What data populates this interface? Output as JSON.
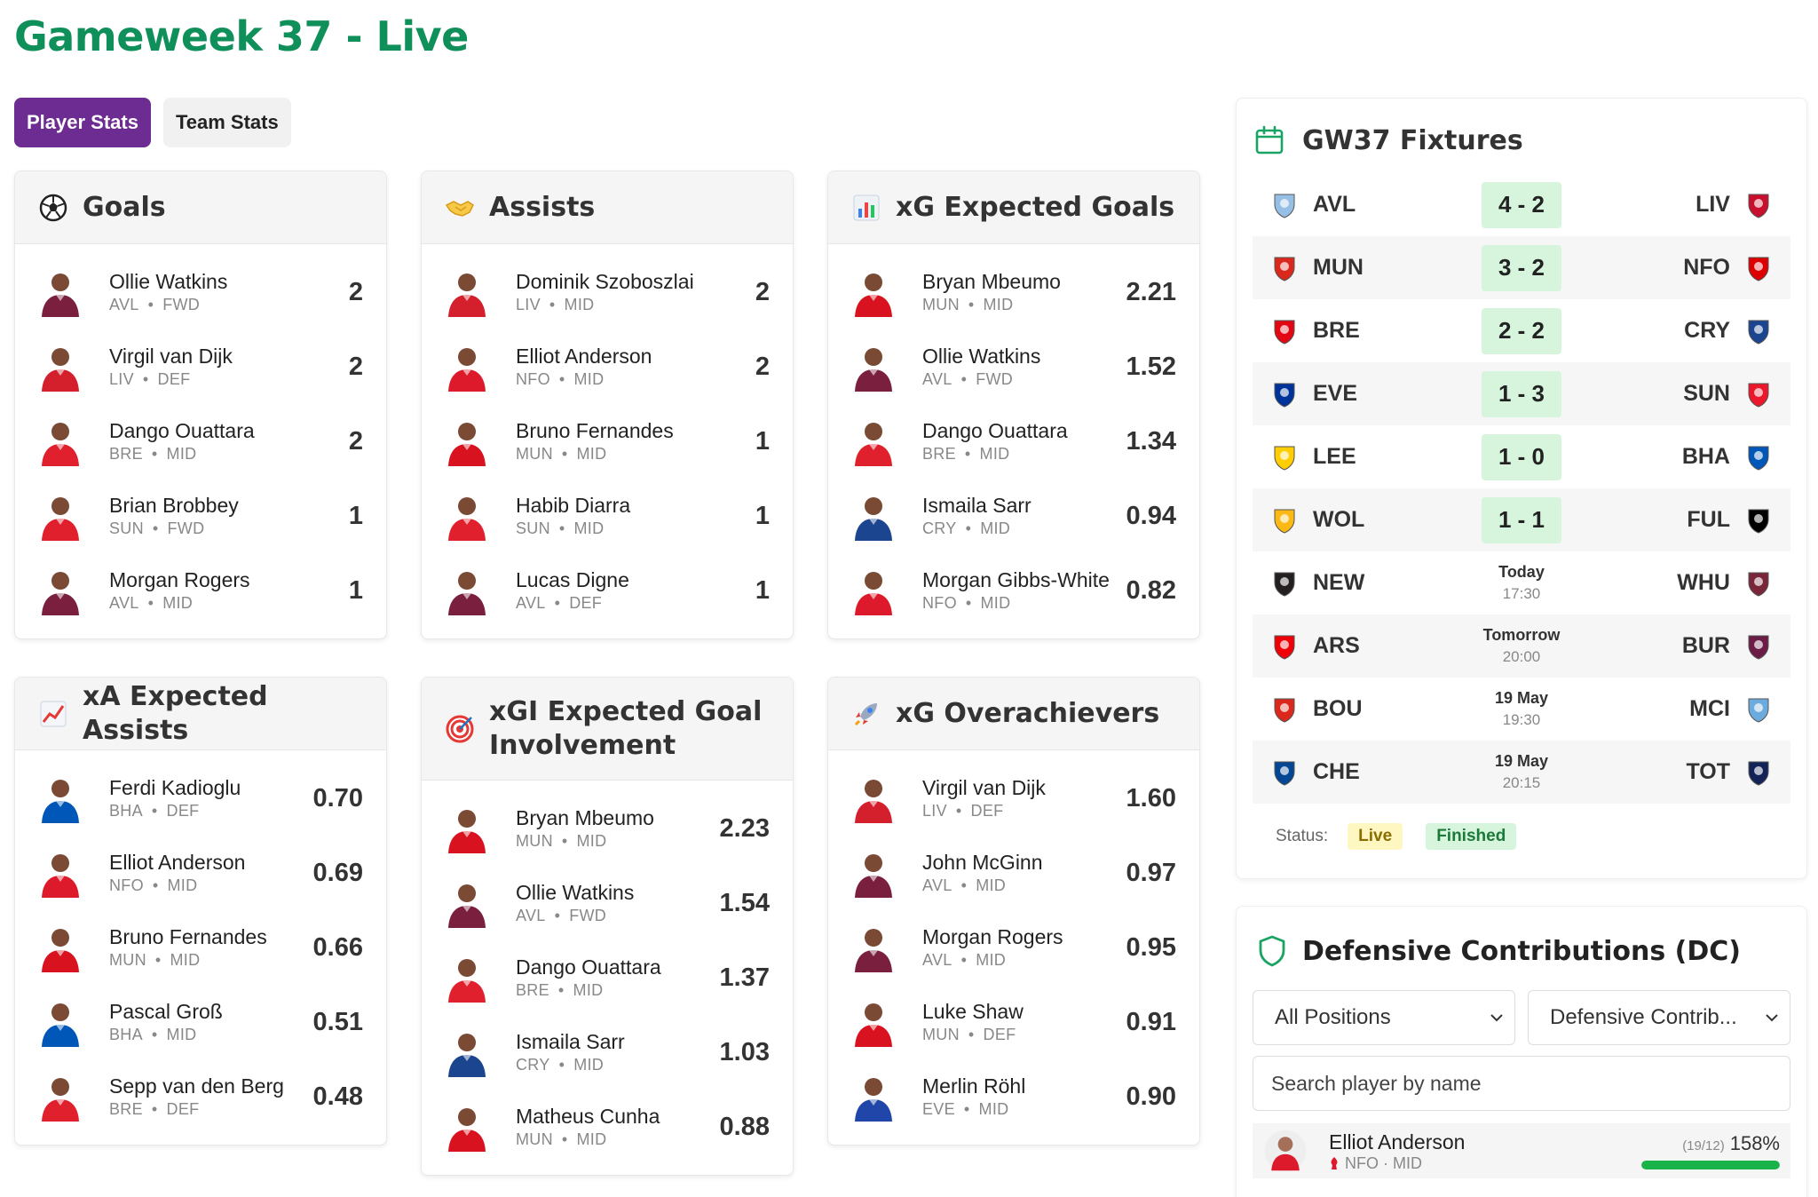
{
  "page": {
    "title": "Gameweek 37 - Live"
  },
  "tabs": [
    {
      "label": "Player Stats",
      "active": true
    },
    {
      "label": "Team Stats",
      "active": false
    }
  ],
  "cards": {
    "goals": {
      "title": "Goals",
      "icon": "soccer-ball-icon",
      "rows": [
        {
          "name": "Ollie Watkins",
          "team": "AVL",
          "pos": "FWD",
          "value": "2",
          "kit": "#7a1f3d"
        },
        {
          "name": "Virgil van Dijk",
          "team": "LIV",
          "pos": "DEF",
          "value": "2",
          "kit": "#d4202c"
        },
        {
          "name": "Dango Ouattara",
          "team": "BRE",
          "pos": "MID",
          "value": "2",
          "kit": "#e0212d"
        },
        {
          "name": "Brian Brobbey",
          "team": "SUN",
          "pos": "FWD",
          "value": "1",
          "kit": "#e0212d"
        },
        {
          "name": "Morgan Rogers",
          "team": "AVL",
          "pos": "MID",
          "value": "1",
          "kit": "#7a1f3d"
        }
      ]
    },
    "assists": {
      "title": "Assists",
      "icon": "handshake-icon",
      "rows": [
        {
          "name": "Dominik Szoboszlai",
          "team": "LIV",
          "pos": "MID",
          "value": "2",
          "kit": "#d4202c"
        },
        {
          "name": "Elliot Anderson",
          "team": "NFO",
          "pos": "MID",
          "value": "2",
          "kit": "#dd1a2b"
        },
        {
          "name": "Bruno Fernandes",
          "team": "MUN",
          "pos": "MID",
          "value": "1",
          "kit": "#d8121f"
        },
        {
          "name": "Habib Diarra",
          "team": "SUN",
          "pos": "MID",
          "value": "1",
          "kit": "#e0212d"
        },
        {
          "name": "Lucas Digne",
          "team": "AVL",
          "pos": "DEF",
          "value": "1",
          "kit": "#7a1f3d"
        }
      ]
    },
    "xg": {
      "title": "xG Expected Goals",
      "icon": "bar-chart-icon",
      "rows": [
        {
          "name": "Bryan Mbeumo",
          "team": "MUN",
          "pos": "MID",
          "value": "2.21",
          "kit": "#d8121f"
        },
        {
          "name": "Ollie Watkins",
          "team": "AVL",
          "pos": "FWD",
          "value": "1.52",
          "kit": "#7a1f3d"
        },
        {
          "name": "Dango Ouattara",
          "team": "BRE",
          "pos": "MID",
          "value": "1.34",
          "kit": "#e0212d"
        },
        {
          "name": "Ismaila Sarr",
          "team": "CRY",
          "pos": "MID",
          "value": "0.94",
          "kit": "#1b458f"
        },
        {
          "name": "Morgan Gibbs-White",
          "team": "NFO",
          "pos": "MID",
          "value": "0.82",
          "kit": "#dd1a2b"
        }
      ]
    },
    "xa": {
      "title": "xA Expected Assists",
      "icon": "trend-chart-icon",
      "rows": [
        {
          "name": "Ferdi Kadioglu",
          "team": "BHA",
          "pos": "DEF",
          "value": "0.70",
          "kit": "#0057b8"
        },
        {
          "name": "Elliot Anderson",
          "team": "NFO",
          "pos": "MID",
          "value": "0.69",
          "kit": "#dd1a2b"
        },
        {
          "name": "Bruno Fernandes",
          "team": "MUN",
          "pos": "MID",
          "value": "0.66",
          "kit": "#d8121f"
        },
        {
          "name": "Pascal Groß",
          "team": "BHA",
          "pos": "MID",
          "value": "0.51",
          "kit": "#0057b8"
        },
        {
          "name": "Sepp van den Berg",
          "team": "BRE",
          "pos": "DEF",
          "value": "0.48",
          "kit": "#e0212d"
        }
      ]
    },
    "xgi": {
      "title": "xGI Expected Goal Involvement",
      "icon": "target-icon",
      "rows": [
        {
          "name": "Bryan Mbeumo",
          "team": "MUN",
          "pos": "MID",
          "value": "2.23",
          "kit": "#d8121f"
        },
        {
          "name": "Ollie Watkins",
          "team": "AVL",
          "pos": "FWD",
          "value": "1.54",
          "kit": "#7a1f3d"
        },
        {
          "name": "Dango Ouattara",
          "team": "BRE",
          "pos": "MID",
          "value": "1.37",
          "kit": "#e0212d"
        },
        {
          "name": "Ismaila Sarr",
          "team": "CRY",
          "pos": "MID",
          "value": "1.03",
          "kit": "#1b458f"
        },
        {
          "name": "Matheus Cunha",
          "team": "MUN",
          "pos": "MID",
          "value": "0.88",
          "kit": "#d8121f"
        }
      ]
    },
    "over": {
      "title": "xG Overachievers",
      "icon": "rocket-icon",
      "rows": [
        {
          "name": "Virgil van Dijk",
          "team": "LIV",
          "pos": "DEF",
          "value": "1.60",
          "kit": "#d4202c"
        },
        {
          "name": "John McGinn",
          "team": "AVL",
          "pos": "MID",
          "value": "0.97",
          "kit": "#7a1f3d"
        },
        {
          "name": "Morgan Rogers",
          "team": "AVL",
          "pos": "MID",
          "value": "0.95",
          "kit": "#7a1f3d"
        },
        {
          "name": "Luke Shaw",
          "team": "MUN",
          "pos": "DEF",
          "value": "0.91",
          "kit": "#d8121f"
        },
        {
          "name": "Merlin Röhl",
          "team": "EVE",
          "pos": "MID",
          "value": "0.90",
          "kit": "#1f46a8"
        }
      ]
    }
  },
  "fixtures": {
    "title": "GW37 Fixtures",
    "rows": [
      {
        "home": "AVL",
        "away": "LIV",
        "score": "4 - 2",
        "home_color": "#95bfe5",
        "away_color": "#c8102e"
      },
      {
        "home": "MUN",
        "away": "NFO",
        "score": "3 - 2",
        "home_color": "#da291c",
        "away_color": "#dd0000"
      },
      {
        "home": "BRE",
        "away": "CRY",
        "score": "2 - 2",
        "home_color": "#e30613",
        "away_color": "#1b458f"
      },
      {
        "home": "EVE",
        "away": "SUN",
        "score": "1 - 3",
        "home_color": "#003399",
        "away_color": "#eb172b"
      },
      {
        "home": "LEE",
        "away": "BHA",
        "score": "1 - 0",
        "home_color": "#ffcd00",
        "away_color": "#0057b8"
      },
      {
        "home": "WOL",
        "away": "FUL",
        "score": "1 - 1",
        "home_color": "#fdb913",
        "away_color": "#000000"
      },
      {
        "home": "NEW",
        "away": "WHU",
        "day": "Today",
        "time": "17:30",
        "home_color": "#241f20",
        "away_color": "#7a263a"
      },
      {
        "home": "ARS",
        "away": "BUR",
        "day": "Tomorrow",
        "time": "20:00",
        "home_color": "#ef0107",
        "away_color": "#6c1d45"
      },
      {
        "home": "BOU",
        "away": "MCI",
        "day": "19 May",
        "time": "19:30",
        "home_color": "#da291c",
        "away_color": "#6cabdd"
      },
      {
        "home": "CHE",
        "away": "TOT",
        "day": "19 May",
        "time": "20:15",
        "home_color": "#034694",
        "away_color": "#132257"
      }
    ],
    "status_label": "Status:",
    "live_label": "Live",
    "finished_label": "Finished"
  },
  "defensive": {
    "title": "Defensive Contributions (DC)",
    "position_select": "All Positions",
    "metric_select": "Defensive Contrib...",
    "search_placeholder": "Search player by name",
    "player": {
      "name": "Elliot Anderson",
      "team": "NFO",
      "pos": "MID",
      "meta": "NFO · MID",
      "ratio": "(19/12)",
      "pct": "158%",
      "progress": 1.0
    }
  },
  "colors": {
    "title_green": "#0f8f5a",
    "tab_purple": "#6c2c91",
    "score_bg": "#d6f5dc"
  }
}
